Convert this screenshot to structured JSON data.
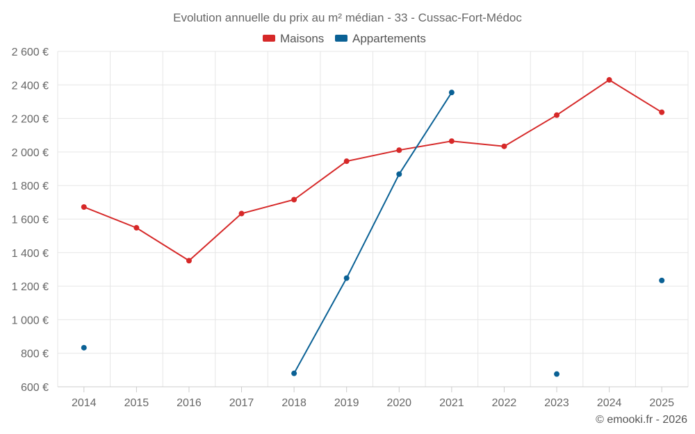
{
  "chart_data": {
    "type": "line",
    "title": "Evolution annuelle du prix au m² médian - 33 - Cussac-Fort-Médoc",
    "categories": [
      "2014",
      "2015",
      "2016",
      "2017",
      "2018",
      "2019",
      "2020",
      "2021",
      "2022",
      "2023",
      "2024",
      "2025"
    ],
    "series": [
      {
        "name": "Maisons",
        "color": "#d62828",
        "values": [
          1672,
          1548,
          1352,
          1633,
          1716,
          1945,
          2011,
          2065,
          2034,
          2220,
          2430,
          2237
        ]
      },
      {
        "name": "Appartements",
        "color": "#0a6195",
        "values": [
          833,
          null,
          null,
          null,
          680,
          1248,
          1868,
          2355,
          null,
          676,
          null,
          1234
        ]
      }
    ],
    "ylim": [
      600,
      2600
    ],
    "yticks": [
      600,
      800,
      1000,
      1200,
      1400,
      1600,
      1800,
      2000,
      2200,
      2400,
      2600
    ],
    "ytick_labels": [
      "600 €",
      "800 €",
      "1 000 €",
      "1 200 €",
      "1 400 €",
      "1 600 €",
      "1 800 €",
      "2 000 €",
      "2 200 €",
      "2 400 €",
      "2 600 €"
    ],
    "grid": true,
    "legend_position": "top-center"
  },
  "credit": "© emooki.fr - 2026"
}
